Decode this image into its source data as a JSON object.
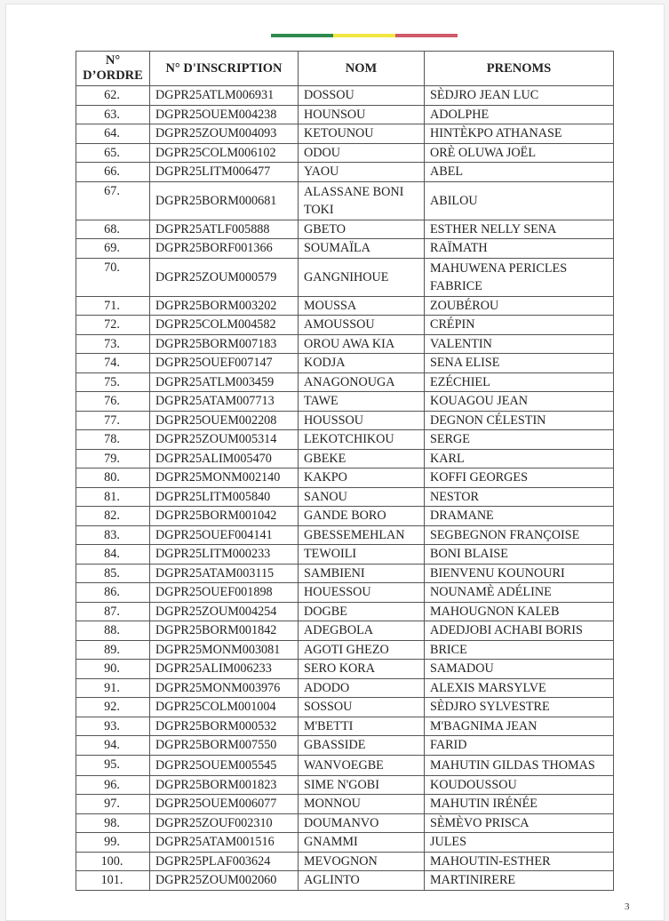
{
  "flag_colors": [
    "#2f8a4f",
    "#f2e640",
    "#d0596a"
  ],
  "table": {
    "headers": [
      "N° D’ORDRE",
      "N° D'INSCRIPTION",
      "NOM",
      "PRENOMS"
    ],
    "rows": [
      [
        "62.",
        "DGPR25ATLM006931",
        "DOSSOU",
        "SÈDJRO JEAN LUC"
      ],
      [
        "63.",
        "DGPR25OUEM004238",
        "HOUNSOU",
        "ADOLPHE"
      ],
      [
        "64.",
        "DGPR25ZOUM004093",
        "KETOUNOU",
        "HINTÈKPO ATHANASE"
      ],
      [
        "65.",
        "DGPR25COLM006102",
        "ODOU",
        "ORÈ OLUWA JOËL"
      ],
      [
        "66.",
        "DGPR25LITM006477",
        "YAOU",
        "ABEL"
      ],
      [
        "67.",
        "DGPR25BORM000681",
        "ALASSANE BONI TOKI",
        "ABILOU"
      ],
      [
        "68.",
        "DGPR25ATLF005888",
        "GBETO",
        "ESTHER NELLY SENA"
      ],
      [
        "69.",
        "DGPR25BORF001366",
        "SOUMAÏLA",
        "RAÏMATH"
      ],
      [
        "70.",
        "DGPR25ZOUM000579",
        "GANGNIHOUE",
        "MAHUWENA PERICLES FABRICE"
      ],
      [
        "71.",
        "DGPR25BORM003202",
        "MOUSSA",
        "ZOUBÉROU"
      ],
      [
        "72.",
        "DGPR25COLM004582",
        "AMOUSSOU",
        "CRÉPIN"
      ],
      [
        "73.",
        "DGPR25BORM007183",
        "OROU AWA KIA",
        "VALENTIN"
      ],
      [
        "74.",
        "DGPR25OUEF007147",
        "KODJA",
        "SENA ELISE"
      ],
      [
        "75.",
        "DGPR25ATLM003459",
        "ANAGONOUGA",
        "EZÉCHIEL"
      ],
      [
        "76.",
        "DGPR25ATAM007713",
        "TAWE",
        "KOUAGOU JEAN"
      ],
      [
        "77.",
        "DGPR25OUEM002208",
        "HOUSSOU",
        "DEGNON CÉLESTIN"
      ],
      [
        "78.",
        "DGPR25ZOUM005314",
        "LEKOTCHIKOU",
        "SERGE"
      ],
      [
        "79.",
        "DGPR25ALIM005470",
        "GBEKE",
        "KARL"
      ],
      [
        "80.",
        "DGPR25MONM002140",
        "KAKPO",
        "KOFFI GEORGES"
      ],
      [
        "81.",
        "DGPR25LITM005840",
        "SANOU",
        "NESTOR"
      ],
      [
        "82.",
        "DGPR25BORM001042",
        "GANDE BORO",
        "DRAMANE"
      ],
      [
        "83.",
        "DGPR25OUEF004141",
        "GBESSEMEHLAN",
        "SEGBEGNON FRANÇOISE"
      ],
      [
        "84.",
        "DGPR25LITM000233",
        "TEWOILI",
        "BONI BLAISE"
      ],
      [
        "85.",
        "DGPR25ATAM003115",
        "SAMBIENI",
        "BIENVENU KOUNOURI"
      ],
      [
        "86.",
        "DGPR25OUEF001898",
        "HOUESSOU",
        "NOUNAMÈ ADÉLINE"
      ],
      [
        "87.",
        "DGPR25ZOUM004254",
        "DOGBE",
        "MAHOUGNON KALEB"
      ],
      [
        "88.",
        "DGPR25BORM001842",
        "ADEGBOLA",
        "ADEDJOBI ACHABI BORIS"
      ],
      [
        "89.",
        "DGPR25MONM003081",
        "AGOTI GHEZO",
        "BRICE"
      ],
      [
        "90.",
        "DGPR25ALIM006233",
        "SERO KORA",
        "SAMADOU"
      ],
      [
        "91.",
        "DGPR25MONM003976",
        "ADODO",
        "ALEXIS MARSYLVE"
      ],
      [
        "92.",
        "DGPR25COLM001004",
        "SOSSOU",
        "SÈDJRO SYLVESTRE"
      ],
      [
        "93.",
        "DGPR25BORM000532",
        "M'BETTI",
        "M'BAGNIMA JEAN"
      ],
      [
        "94.",
        "DGPR25BORM007550",
        "GBASSIDE",
        "FARID"
      ],
      [
        "95.",
        "DGPR25OUEM005545",
        "WANVOEGBE",
        "MAHUTIN GILDAS THOMAS"
      ],
      [
        "96.",
        "DGPR25BORM001823",
        "SIME N'GOBI",
        "KOUDOUSSOU"
      ],
      [
        "97.",
        "DGPR25OUEM006077",
        "MONNOU",
        "MAHUTIN IRÉNÉE"
      ],
      [
        "98.",
        "DGPR25ZOUF002310",
        "DOUMANVO",
        "SÈMÈVO PRISCA"
      ],
      [
        "99.",
        "DGPR25ATAM001516",
        "GNAMMI",
        "JULES"
      ],
      [
        "100.",
        "DGPR25PLAF003624",
        "MEVOGNON",
        "MAHOUTIN-ESTHER"
      ],
      [
        "101.",
        "DGPR25ZOUM002060",
        "AGLINTO",
        "MARTINIRERE"
      ]
    ]
  },
  "page_number": "3"
}
